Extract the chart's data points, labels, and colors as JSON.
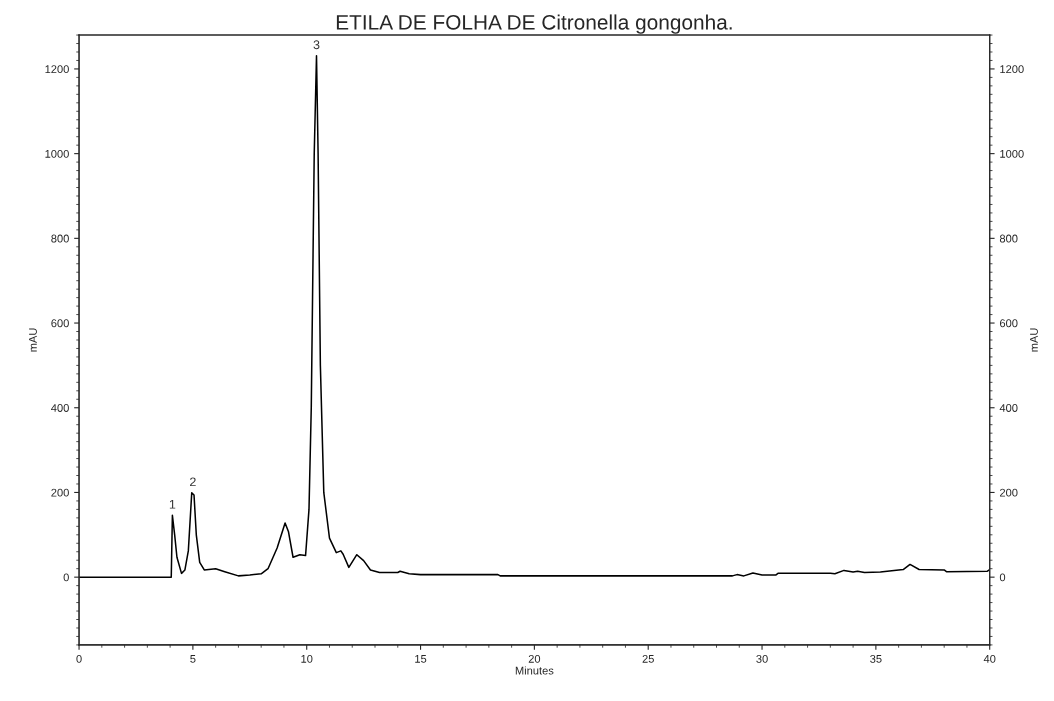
{
  "chart_data": {
    "type": "line",
    "title": "ETILA DE FOLHA DE Citronella gongonha.",
    "xlabel": "Minutes",
    "ylabel": "mAU",
    "y2label": "mAU",
    "xlim": [
      0,
      40
    ],
    "xticks": [
      0,
      5,
      10,
      15,
      20,
      25,
      30,
      35,
      40
    ],
    "ylim": [
      -160,
      1280
    ],
    "yticks": [
      0,
      200,
      400,
      600,
      800,
      1000,
      1200
    ],
    "y2lim": [
      -160,
      1280
    ],
    "y2ticks": [
      0,
      200,
      400,
      600,
      800,
      1000,
      1200
    ],
    "grid": false,
    "legend": false,
    "marker": "none",
    "line_style": "solid",
    "series": [
      {
        "color": "#000000",
        "x": [
          0,
          4.05,
          4.1,
          4.2,
          4.3,
          4.5,
          4.65,
          4.8,
          4.95,
          5.05,
          5.15,
          5.3,
          5.5,
          6.0,
          6.4,
          7.0,
          7.5,
          8.0,
          8.3,
          8.7,
          9.05,
          9.2,
          9.4,
          9.7,
          9.95,
          10.1,
          10.2,
          10.33,
          10.43,
          10.5,
          10.6,
          10.75,
          11.0,
          11.3,
          11.5,
          11.6,
          11.85,
          12.2,
          12.5,
          12.8,
          13.2,
          14.0,
          14.1,
          14.5,
          15.0,
          18.4,
          18.5,
          28.7,
          28.9,
          29.2,
          29.6,
          30.0,
          30.6,
          30.7,
          33.0,
          33.2,
          33.6,
          34.0,
          34.2,
          34.5,
          35.2,
          35.7,
          36.2,
          36.5,
          36.9,
          38.0,
          38.1,
          39.9,
          40
        ],
        "values": [
          0,
          0,
          146,
          100,
          47,
          9,
          17,
          62,
          199,
          194,
          100,
          35,
          17,
          20,
          13,
          3,
          5,
          8,
          20,
          69,
          128,
          107,
          47,
          53,
          51,
          160,
          400,
          1000,
          1231,
          1000,
          500,
          200,
          92,
          58,
          62,
          54,
          23,
          53,
          39,
          17,
          11,
          11,
          14,
          8,
          6,
          6,
          3,
          3,
          6,
          3,
          10,
          5,
          5,
          9,
          9,
          8,
          16,
          12,
          14,
          11,
          12,
          15,
          18,
          30,
          18,
          17,
          13,
          14,
          18
        ]
      }
    ],
    "annotations": [
      {
        "text": "1",
        "x": 4.1,
        "y": 146
      },
      {
        "text": "2",
        "x": 5.0,
        "y": 199
      },
      {
        "text": "3",
        "x": 10.43,
        "y": 1231
      }
    ]
  }
}
